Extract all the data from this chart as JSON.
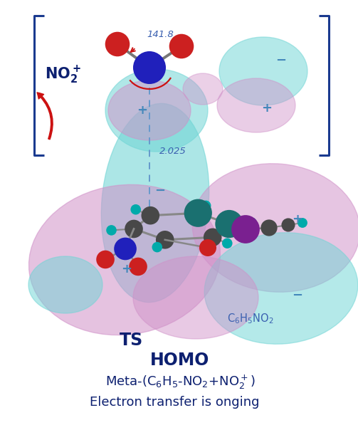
{
  "figure_width": 5.03,
  "figure_height": 6.11,
  "dpi": 100,
  "background_color": "#ffffff",
  "title_line1": "TS",
  "title_line2": "HOMO",
  "bottom_text": "Electron transfer is onging",
  "label_c6h5no2": "C$_6$H$_5$NO$_2$",
  "label_no2plus": "NO$_2^+$",
  "label_141": "141.8",
  "label_2025": "2.025",
  "text_color_blue": "#1a3a8f",
  "text_color_dark_blue": "#0d2070",
  "annotation_color": "#3a60b0",
  "mo_color_cyan": "#70d5d5",
  "mo_color_pink": "#d090c8",
  "bond_color": "#999999",
  "atom_n_color": "#2020bb",
  "atom_o_color": "#cc2020",
  "atom_c_color": "#505050",
  "atom_h_color": "#00aaaa",
  "atom_teal_color": "#207070",
  "atom_purple_color": "#7a2090",
  "bracket_color": "#1a3a8f",
  "arrow_color": "#cc1111",
  "dashed_color": "#6699cc",
  "plus_minus_color": "#4488bb"
}
